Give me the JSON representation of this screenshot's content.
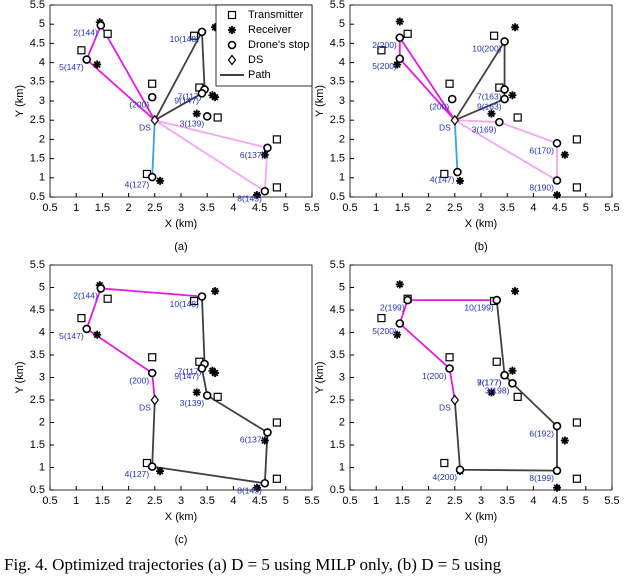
{
  "chart_data": [
    {
      "type": "scatter",
      "caption": "(a)",
      "xlabel": "X (km)",
      "ylabel": "Y (km)",
      "legend": "upper right",
      "xlim": [
        0.5,
        5.5
      ],
      "ylim": [
        0.5,
        5.5
      ],
      "xticks": [
        0.5,
        1,
        1.5,
        2,
        2.5,
        3,
        3.5,
        4,
        4.5,
        5,
        5.5
      ],
      "yticks": [
        0.5,
        1,
        1.5,
        2,
        2.5,
        3,
        3.5,
        4,
        4.5,
        5,
        5.5
      ],
      "series": [
        {
          "name": "Transmitter",
          "marker": "square",
          "color": "#000000",
          "x": [
            1.1,
            1.6,
            2.45,
            3.25,
            3.35,
            3.7,
            2.35,
            4.83,
            4.83
          ],
          "y": [
            4.32,
            4.75,
            3.45,
            4.7,
            3.35,
            2.57,
            1.1,
            2.0,
            0.75
          ]
        },
        {
          "name": "Receiver",
          "marker": "asterisk",
          "color": "#000000",
          "x": [
            1.45,
            1.4,
            3.65,
            3.6,
            3.65,
            3.3,
            4.6,
            2.6,
            4.45
          ],
          "y": [
            5.05,
            3.95,
            4.92,
            3.15,
            3.1,
            2.67,
            1.6,
            0.92,
            0.55
          ]
        },
        {
          "name": "Drone's stop",
          "marker": "circle",
          "color": "#000000",
          "labels": [
            "2(144)",
            "5(147)",
            "(200)",
            "10(148)",
            "7(117)",
            "9(147)",
            "3(139)",
            "6(137)",
            "8(145)",
            "4(127)"
          ],
          "x": [
            1.47,
            1.2,
            2.45,
            3.4,
            3.45,
            3.4,
            3.5,
            4.65,
            4.6,
            2.45
          ],
          "y": [
            4.97,
            4.08,
            3.1,
            4.8,
            3.3,
            3.2,
            2.6,
            1.78,
            0.65,
            1.02
          ]
        },
        {
          "name": "DS",
          "marker": "diamond",
          "color": "#000000",
          "label": "DS",
          "x": [
            2.5
          ],
          "y": [
            2.5
          ]
        },
        {
          "name": "Path",
          "marker": "line",
          "color": "#000000",
          "lines": [
            {
              "color": "#e619e6",
              "x": [
                2.5,
                1.2,
                1.47,
                2.5
              ],
              "y": [
                2.5,
                4.08,
                4.97,
                2.5
              ]
            },
            {
              "color": "#404040",
              "x": [
                2.5,
                3.4,
                3.45,
                3.4,
                2.5
              ],
              "y": [
                2.5,
                4.8,
                3.3,
                3.2,
                2.5
              ]
            },
            {
              "color": "#f4a6f4",
              "x": [
                2.5,
                4.65,
                4.6,
                2.5
              ],
              "y": [
                2.5,
                1.78,
                0.65,
                2.5
              ]
            },
            {
              "color": "#3aa0e0",
              "x": [
                2.5,
                2.45
              ],
              "y": [
                2.5,
                1.02
              ]
            }
          ]
        }
      ]
    },
    {
      "type": "scatter",
      "caption": "(b)",
      "xlabel": "X (km)",
      "ylabel": "Y (km)",
      "xlim": [
        0.5,
        5.5
      ],
      "ylim": [
        0.5,
        5.5
      ],
      "xticks": [
        0.5,
        1,
        1.5,
        2,
        2.5,
        3,
        3.5,
        4,
        4.5,
        5,
        5.5
      ],
      "yticks": [
        0.5,
        1,
        1.5,
        2,
        2.5,
        3,
        3.5,
        4,
        4.5,
        5,
        5.5
      ],
      "series": [
        {
          "marker": "square",
          "color": "#000000",
          "x": [
            1.1,
            1.6,
            2.4,
            3.25,
            3.35,
            3.7,
            2.3,
            4.83,
            4.83
          ],
          "y": [
            4.32,
            4.75,
            3.45,
            4.7,
            3.35,
            2.57,
            1.1,
            2.0,
            0.75
          ]
        },
        {
          "marker": "asterisk",
          "color": "#000000",
          "x": [
            1.45,
            1.4,
            3.65,
            3.6,
            3.2,
            4.6,
            2.6,
            4.45
          ],
          "y": [
            5.07,
            3.95,
            4.92,
            3.15,
            2.67,
            1.6,
            0.92,
            0.55
          ]
        },
        {
          "marker": "circle",
          "color": "#000000",
          "labels": [
            "2(200)",
            "5(200)",
            "(200)",
            "10(200)",
            "7(163)",
            "9(163)",
            "3(169)",
            "6(170)",
            "8(190)",
            "4(147)"
          ],
          "x": [
            1.45,
            1.45,
            2.45,
            3.45,
            3.45,
            3.45,
            3.35,
            4.45,
            4.45,
            2.55
          ],
          "y": [
            4.65,
            4.1,
            3.05,
            4.55,
            3.3,
            3.05,
            2.45,
            1.9,
            0.93,
            1.15
          ]
        },
        {
          "marker": "diamond",
          "color": "#000000",
          "label": "DS",
          "x": [
            2.5
          ],
          "y": [
            2.5
          ]
        },
        {
          "marker": "line",
          "color": "#000000",
          "lines": [
            {
              "color": "#e619e6",
              "x": [
                2.5,
                1.45,
                1.45,
                2.5
              ],
              "y": [
                2.5,
                4.1,
                4.65,
                2.5
              ]
            },
            {
              "color": "#404040",
              "x": [
                2.5,
                3.45,
                3.45,
                3.45,
                2.5
              ],
              "y": [
                2.5,
                4.55,
                3.3,
                3.05,
                2.5
              ]
            },
            {
              "color": "#f4a6f4",
              "x": [
                2.5,
                3.35,
                4.45,
                4.45,
                2.5
              ],
              "y": [
                2.5,
                2.45,
                1.9,
                0.93,
                2.5
              ]
            },
            {
              "color": "#3aa0e0",
              "x": [
                2.5,
                2.55
              ],
              "y": [
                2.5,
                1.15
              ]
            }
          ]
        }
      ]
    },
    {
      "type": "scatter",
      "caption": "(c)",
      "xlabel": "X (km)",
      "ylabel": "Y (km)",
      "xlim": [
        0.5,
        5.5
      ],
      "ylim": [
        0.5,
        5.5
      ],
      "xticks": [
        0.5,
        1,
        1.5,
        2,
        2.5,
        3,
        3.5,
        4,
        4.5,
        5,
        5.5
      ],
      "yticks": [
        0.5,
        1,
        1.5,
        2,
        2.5,
        3,
        3.5,
        4,
        4.5,
        5,
        5.5
      ],
      "series": [
        {
          "marker": "square",
          "color": "#000000",
          "x": [
            1.1,
            1.6,
            2.45,
            3.25,
            3.35,
            3.7,
            2.35,
            4.83,
            4.83
          ],
          "y": [
            4.32,
            4.75,
            3.45,
            4.7,
            3.35,
            2.57,
            1.1,
            2.0,
            0.75
          ]
        },
        {
          "marker": "asterisk",
          "color": "#000000",
          "x": [
            1.45,
            1.4,
            3.65,
            3.6,
            3.65,
            3.3,
            4.6,
            2.6,
            4.45
          ],
          "y": [
            5.05,
            3.95,
            4.92,
            3.15,
            3.1,
            2.67,
            1.6,
            0.92,
            0.55
          ]
        },
        {
          "marker": "circle",
          "color": "#000000",
          "labels": [
            "2(144)",
            "5(147)",
            "(200)",
            "10(148)",
            "7(117)",
            "9(147)",
            "3(139)",
            "6(137)",
            "8(145)",
            "4(127)"
          ],
          "x": [
            1.47,
            1.2,
            2.45,
            3.4,
            3.45,
            3.4,
            3.5,
            4.65,
            4.6,
            2.45
          ],
          "y": [
            4.98,
            4.08,
            3.1,
            4.8,
            3.3,
            3.2,
            2.6,
            1.78,
            0.65,
            1.02
          ]
        },
        {
          "marker": "diamond",
          "color": "#000000",
          "label": "DS",
          "x": [
            2.5
          ],
          "y": [
            2.5
          ]
        },
        {
          "marker": "line",
          "color": "#000000",
          "lines": [
            {
              "color": "#e619e6",
              "x": [
                2.5,
                2.45,
                1.2,
                1.47,
                3.4
              ],
              "y": [
                2.5,
                3.1,
                4.08,
                4.98,
                4.8
              ]
            },
            {
              "color": "#404040",
              "x": [
                3.4,
                3.45,
                3.4,
                3.5,
                4.65,
                4.6,
                2.45,
                2.5
              ],
              "y": [
                4.8,
                3.3,
                3.2,
                2.6,
                1.78,
                0.65,
                1.02,
                2.5
              ]
            }
          ]
        }
      ]
    },
    {
      "type": "scatter",
      "caption": "(d)",
      "xlabel": "X (km)",
      "ylabel": "Y (km)",
      "xlim": [
        0.5,
        5.5
      ],
      "ylim": [
        0.5,
        5.5
      ],
      "xticks": [
        0.5,
        1,
        1.5,
        2,
        2.5,
        3,
        3.5,
        4,
        4.5,
        5,
        5.5
      ],
      "yticks": [
        0.5,
        1,
        1.5,
        2,
        2.5,
        3,
        3.5,
        4,
        4.5,
        5,
        5.5
      ],
      "series": [
        {
          "marker": "square",
          "color": "#000000",
          "x": [
            1.1,
            1.6,
            2.4,
            3.25,
            3.3,
            3.7,
            2.3,
            4.83,
            4.83
          ],
          "y": [
            4.32,
            4.75,
            3.45,
            4.7,
            3.35,
            2.57,
            1.1,
            2.0,
            0.75
          ]
        },
        {
          "marker": "asterisk",
          "color": "#000000",
          "x": [
            1.45,
            1.4,
            3.65,
            3.6,
            3.2,
            4.6,
            2.6,
            4.45
          ],
          "y": [
            5.07,
            3.95,
            4.92,
            3.15,
            2.67,
            1.6,
            0.92,
            0.55
          ]
        },
        {
          "marker": "circle",
          "color": "#000000",
          "labels": [
            "2(199)",
            "5(200)",
            "1(200)",
            "10(199)",
            "7(177)",
            "9(177)",
            "3(198)",
            "6(192)",
            "8(199)",
            "4(200)"
          ],
          "x": [
            1.6,
            1.45,
            2.4,
            3.3,
            3.45,
            3.45,
            3.6,
            4.45,
            4.45,
            2.6
          ],
          "y": [
            4.72,
            4.2,
            3.2,
            4.72,
            3.05,
            3.05,
            2.87,
            1.92,
            0.93,
            0.95
          ]
        },
        {
          "marker": "diamond",
          "color": "#000000",
          "label": "DS",
          "x": [
            2.5
          ],
          "y": [
            2.5
          ]
        },
        {
          "marker": "line",
          "color": "#000000",
          "lines": [
            {
              "color": "#e619e6",
              "x": [
                2.5,
                2.4,
                1.45,
                1.6,
                3.3
              ],
              "y": [
                2.5,
                3.2,
                4.2,
                4.72,
                4.72
              ]
            },
            {
              "color": "#404040",
              "x": [
                3.3,
                3.45,
                3.6,
                4.45,
                4.45,
                2.6,
                2.5
              ],
              "y": [
                4.72,
                3.05,
                2.87,
                1.92,
                0.93,
                0.95,
                2.5
              ]
            }
          ]
        }
      ]
    }
  ],
  "figure_caption": "Fig. 4.   Optimized trajectories (a) D = 5 using MILP only, (b) D = 5 using"
}
